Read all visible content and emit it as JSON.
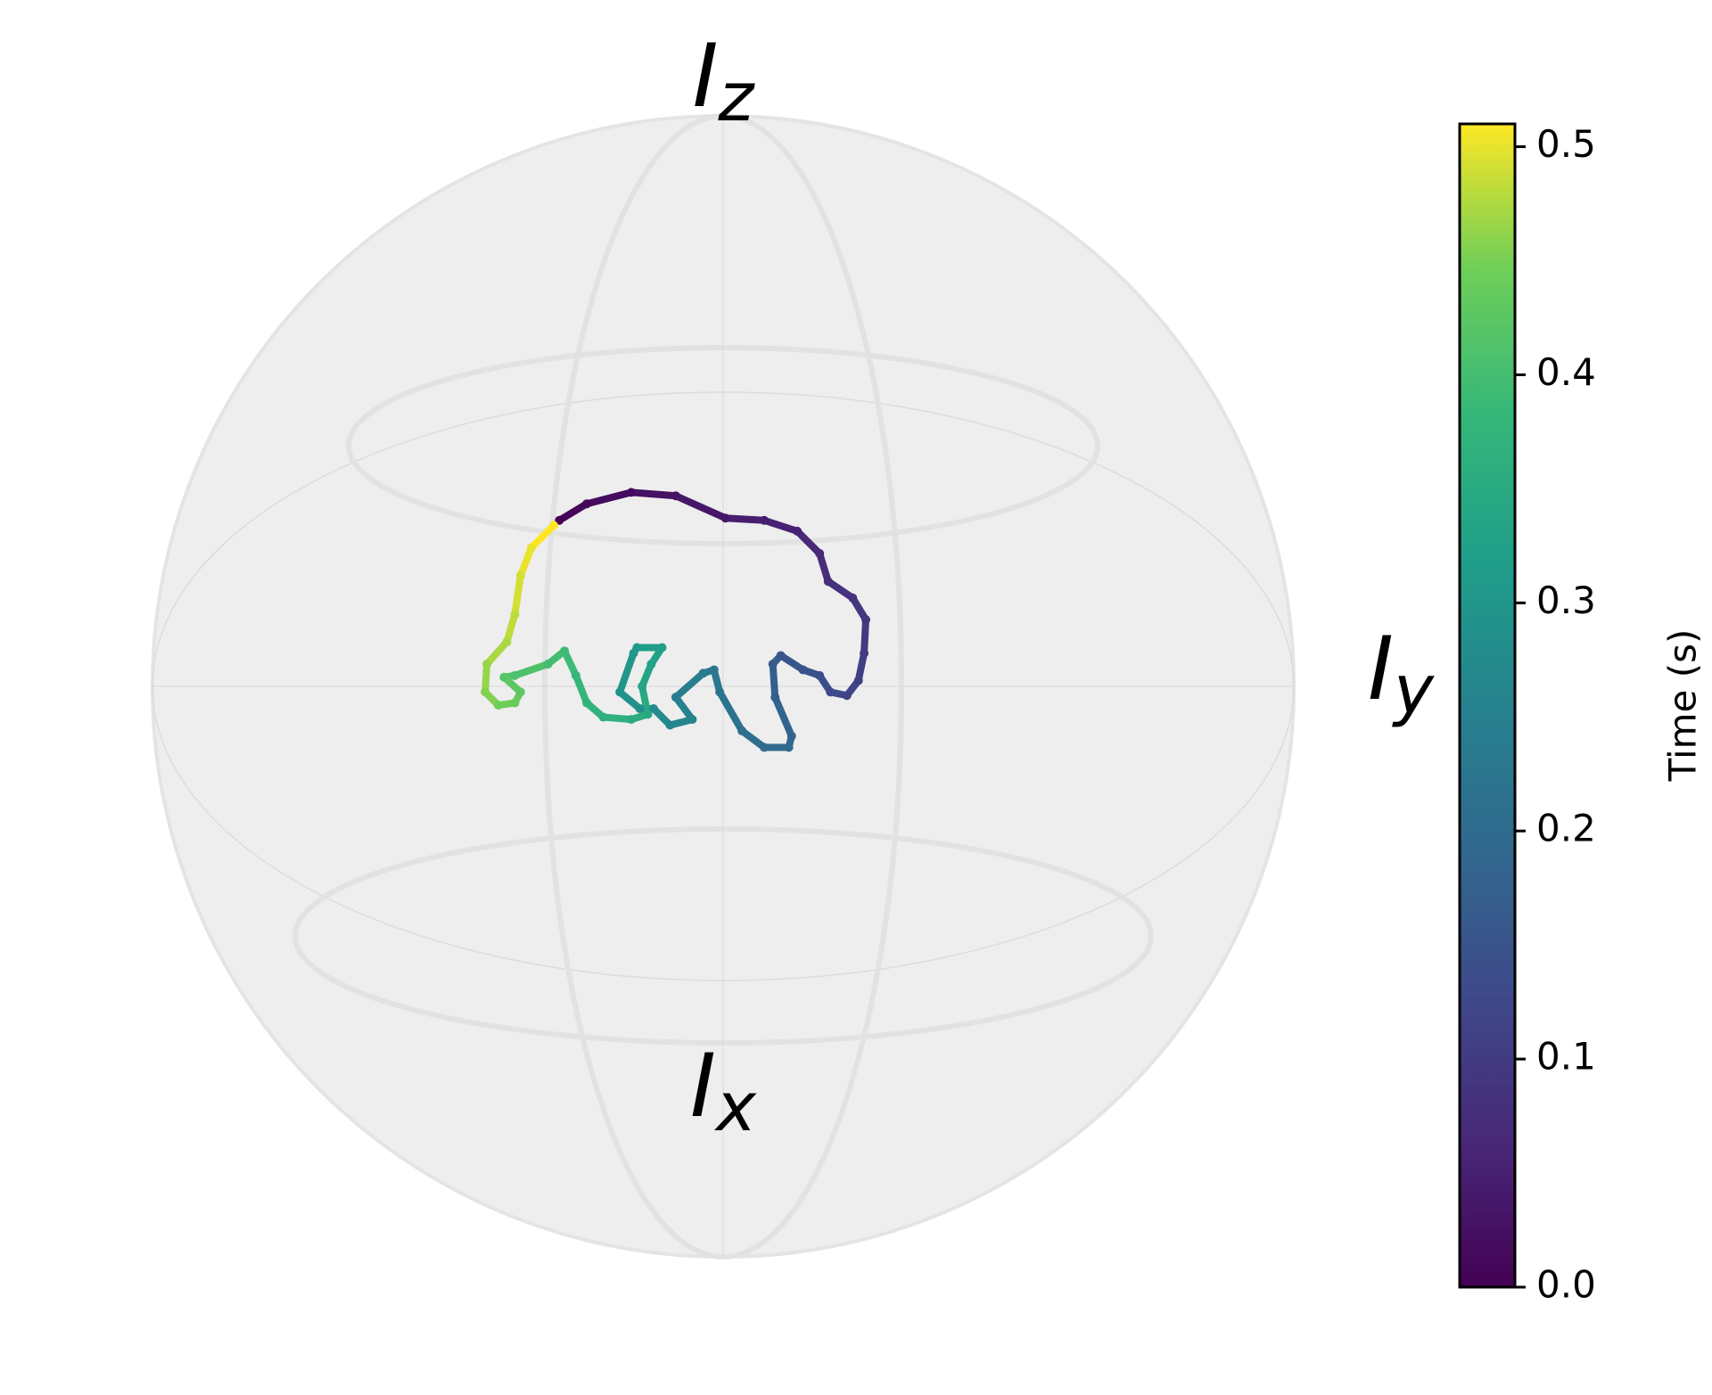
{
  "chart_data": {
    "type": "bloch-sphere",
    "labels": {
      "z": {
        "main": "I",
        "sub": "z"
      },
      "x": {
        "main": "I",
        "sub": "x"
      },
      "y": {
        "main": "I",
        "sub": "y"
      }
    },
    "ylim": [
      -1,
      1
    ],
    "zlim": [
      -1,
      1
    ],
    "colorbar": {
      "label": "Time (s)",
      "colormap": "viridis",
      "ylim": [
        0,
        0.51
      ],
      "yticks": [
        {
          "value": 0,
          "label": "0.0"
        },
        0.1,
        0.2,
        0.3,
        0.4,
        0.5
      ]
    },
    "trajectory": {
      "y": [
        -0.287,
        -0.239,
        -0.161,
        -0.083,
        0.004,
        0.072,
        0.13,
        0.169,
        0.184,
        0.227,
        0.25,
        0.247,
        0.237,
        0.217,
        0.188,
        0.169,
        0.14,
        0.101,
        0.087,
        0.091,
        0.12,
        0.115,
        0.072,
        0.033,
        -0.006,
        -0.016,
        -0.035,
        -0.083,
        -0.054,
        -0.093,
        -0.122,
        -0.146,
        -0.181,
        -0.157,
        -0.151,
        -0.107,
        -0.126,
        -0.142,
        -0.132,
        -0.161,
        -0.21,
        -0.239,
        -0.258,
        -0.278,
        -0.307,
        -0.365,
        -0.384,
        -0.355,
        -0.365,
        -0.394,
        -0.417,
        -0.414,
        -0.379,
        -0.365,
        -0.355,
        -0.336,
        -0.297
      ],
      "z": [
        0.291,
        0.32,
        0.34,
        0.334,
        0.295,
        0.291,
        0.272,
        0.233,
        0.184,
        0.155,
        0.117,
        0.058,
        0.01,
        -0.016,
        -0.01,
        0.019,
        0.029,
        0.054,
        0.039,
        -0.019,
        -0.087,
        -0.107,
        -0.107,
        -0.078,
        -0.01,
        0.029,
        0.023,
        -0.019,
        -0.058,
        -0.068,
        -0.039,
        -0.039,
        -0.01,
        0.058,
        0.068,
        0.068,
        0.039,
        0,
        -0.049,
        -0.058,
        -0.054,
        -0.029,
        0.019,
        0.062,
        0.039,
        0.019,
        0.016,
        -0.01,
        -0.029,
        -0.033,
        -0.01,
        0.039,
        0.078,
        0.126,
        0.194,
        0.243,
        0.282
      ],
      "t": [
        0,
        0.009,
        0.018,
        0.027,
        0.036,
        0.046,
        0.055,
        0.064,
        0.073,
        0.082,
        0.091,
        0.1,
        0.109,
        0.118,
        0.128,
        0.137,
        0.146,
        0.155,
        0.164,
        0.173,
        0.182,
        0.191,
        0.2,
        0.209,
        0.219,
        0.228,
        0.237,
        0.246,
        0.255,
        0.264,
        0.273,
        0.282,
        0.291,
        0.3,
        0.309,
        0.319,
        0.328,
        0.337,
        0.346,
        0.355,
        0.364,
        0.373,
        0.382,
        0.391,
        0.4,
        0.41,
        0.419,
        0.428,
        0.437,
        0.446,
        0.455,
        0.464,
        0.473,
        0.482,
        0.491,
        0.501,
        0.51
      ]
    }
  }
}
